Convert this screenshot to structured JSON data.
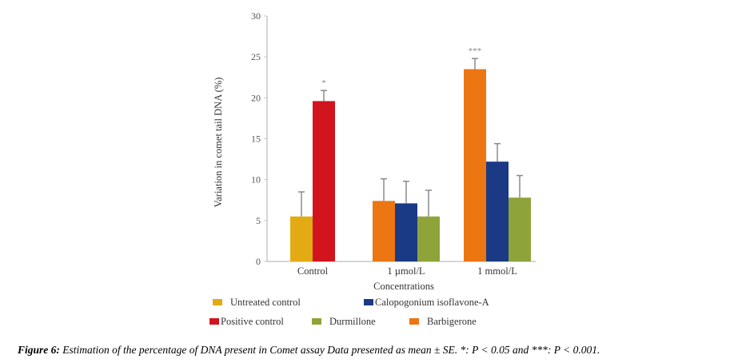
{
  "chart_data": {
    "type": "bar",
    "title": "",
    "xlabel": "Concentrations",
    "ylabel": "Variation in comet tail DNA (%)",
    "ylim": [
      0,
      30
    ],
    "yticks": [
      0,
      5,
      10,
      15,
      20,
      25,
      30
    ],
    "grid": false,
    "legend_position": "bottom",
    "groups": [
      {
        "category": "Control",
        "bars": [
          {
            "series": "Untreated control",
            "value": 5.5,
            "error": 3.0,
            "sig": ""
          },
          {
            "series": "Positive control",
            "value": 19.6,
            "error": 1.3,
            "sig": "*"
          }
        ]
      },
      {
        "category": "1 µmol/L",
        "bars": [
          {
            "series": "Barbigerone",
            "value": 7.4,
            "error": 2.7,
            "sig": ""
          },
          {
            "series": "Calopogonium isoflavone-A",
            "value": 7.1,
            "error": 2.7,
            "sig": ""
          },
          {
            "series": "Durmillone",
            "value": 5.5,
            "error": 3.2,
            "sig": ""
          }
        ]
      },
      {
        "category": "1 mmol/L",
        "bars": [
          {
            "series": "Barbigerone",
            "value": 23.5,
            "error": 1.3,
            "sig": "***"
          },
          {
            "series": "Calopogonium isoflavone-A",
            "value": 12.2,
            "error": 2.2,
            "sig": ""
          },
          {
            "series": "Durmillone",
            "value": 7.8,
            "error": 2.7,
            "sig": ""
          }
        ]
      }
    ],
    "series_colors": {
      "Untreated control": "#e2ab14",
      "Positive control": "#d2141e",
      "Barbigerone": "#ec7612",
      "Calopogonium isoflavone-A": "#1a3a86",
      "Durmillone": "#8ea43a"
    },
    "legend": [
      {
        "label": "Untreated control",
        "color": "#e2ab14"
      },
      {
        "label": "Calopogonium isoflavone-A",
        "color": "#1a3a86"
      },
      {
        "label": "Positive control",
        "color": "#d2141e"
      },
      {
        "label": "Durmillone",
        "color": "#8ea43a"
      },
      {
        "label": "Barbigerone",
        "color": "#ec7612"
      }
    ]
  },
  "caption": {
    "label": "Figure 6:",
    "text": " Estimation of the percentage of DNA present in Comet assay Data presented as mean ± SE. *: P < 0.05 and ***: P < 0.001."
  },
  "colors": {
    "axis": "#c8c8c8",
    "error_bar": "#8a8a8a"
  }
}
